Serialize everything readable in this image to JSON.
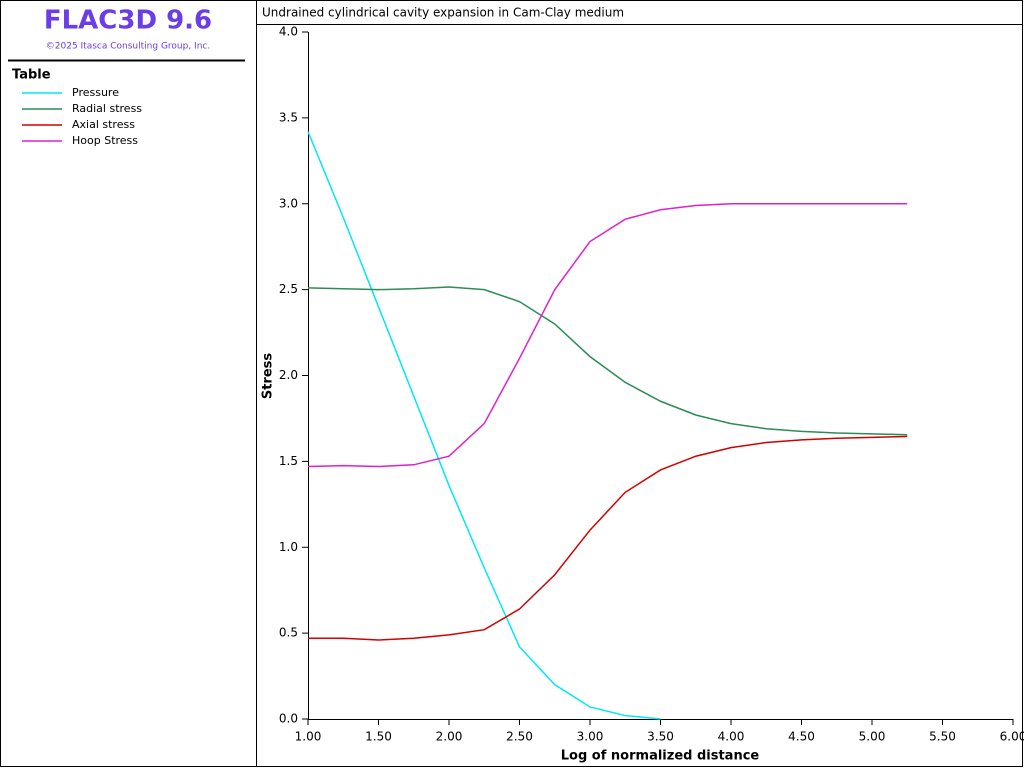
{
  "header": {
    "title": "FLAC3D 9.6",
    "copyright": "©2025 Itasca Consulting Group, Inc.",
    "legend_title": "Table"
  },
  "chart_data": {
    "type": "line",
    "title": "Undrained cylindrical cavity expansion in Cam-Clay medium",
    "xlabel": "Log of normalized distance",
    "ylabel": "Stress",
    "x": [
      1.0,
      1.25,
      1.5,
      1.75,
      2.0,
      2.25,
      2.5,
      2.75,
      3.0,
      3.25,
      3.5,
      3.75,
      4.0,
      4.25,
      4.5,
      4.75,
      5.0,
      5.25
    ],
    "series": [
      {
        "name": "Pressure",
        "color": "#00e8f0",
        "values": [
          3.42,
          2.92,
          2.4,
          1.88,
          1.36,
          0.88,
          0.42,
          0.2,
          0.07,
          0.02,
          0.0,
          null,
          null,
          null,
          null,
          null,
          null,
          null
        ]
      },
      {
        "name": "Radial stress",
        "color": "#2e8b57",
        "values": [
          2.51,
          2.505,
          2.5,
          2.505,
          2.515,
          2.5,
          2.43,
          2.3,
          2.11,
          1.96,
          1.85,
          1.77,
          1.72,
          1.69,
          1.675,
          1.665,
          1.66,
          1.655
        ]
      },
      {
        "name": "Axial stress",
        "color": "#d40000",
        "values": [
          0.47,
          0.47,
          0.46,
          0.47,
          0.49,
          0.52,
          0.64,
          0.84,
          1.1,
          1.32,
          1.45,
          1.53,
          1.58,
          1.61,
          1.625,
          1.635,
          1.64,
          1.645
        ]
      },
      {
        "name": "Hoop Stress",
        "color": "#e020d0",
        "values": [
          1.47,
          1.475,
          1.47,
          1.48,
          1.53,
          1.72,
          2.1,
          2.5,
          2.78,
          2.91,
          2.965,
          2.99,
          3.0,
          3.0,
          3.0,
          3.0,
          3.0,
          3.0
        ]
      }
    ],
    "xlim": [
      1,
      6
    ],
    "xticks": [
      {
        "value": 1,
        "label": "1.00"
      },
      {
        "value": 1.5,
        "label": "1.50"
      },
      {
        "value": 2,
        "label": "2.00"
      },
      {
        "value": 2.5,
        "label": "2.50"
      },
      {
        "value": 3,
        "label": "3.00"
      },
      {
        "value": 3.5,
        "label": "3.50"
      },
      {
        "value": 4,
        "label": "4.00"
      },
      {
        "value": 4.5,
        "label": "4.50"
      },
      {
        "value": 5,
        "label": "5.00"
      },
      {
        "value": 5.5,
        "label": "5.50"
      },
      {
        "value": 6,
        "label": "6.00"
      }
    ],
    "ylim": [
      0,
      4
    ],
    "yticks": [
      {
        "value": 0,
        "label": "0.0"
      },
      {
        "value": 0.5,
        "label": "0.5"
      },
      {
        "value": 1,
        "label": "1.0"
      },
      {
        "value": 1.5,
        "label": "1.5"
      },
      {
        "value": 2,
        "label": "2.0"
      },
      {
        "value": 2.5,
        "label": "2.5"
      },
      {
        "value": 3,
        "label": "3.0"
      },
      {
        "value": 3.5,
        "label": "3.5"
      },
      {
        "value": 4,
        "label": "4.0"
      }
    ],
    "grid": false
  }
}
